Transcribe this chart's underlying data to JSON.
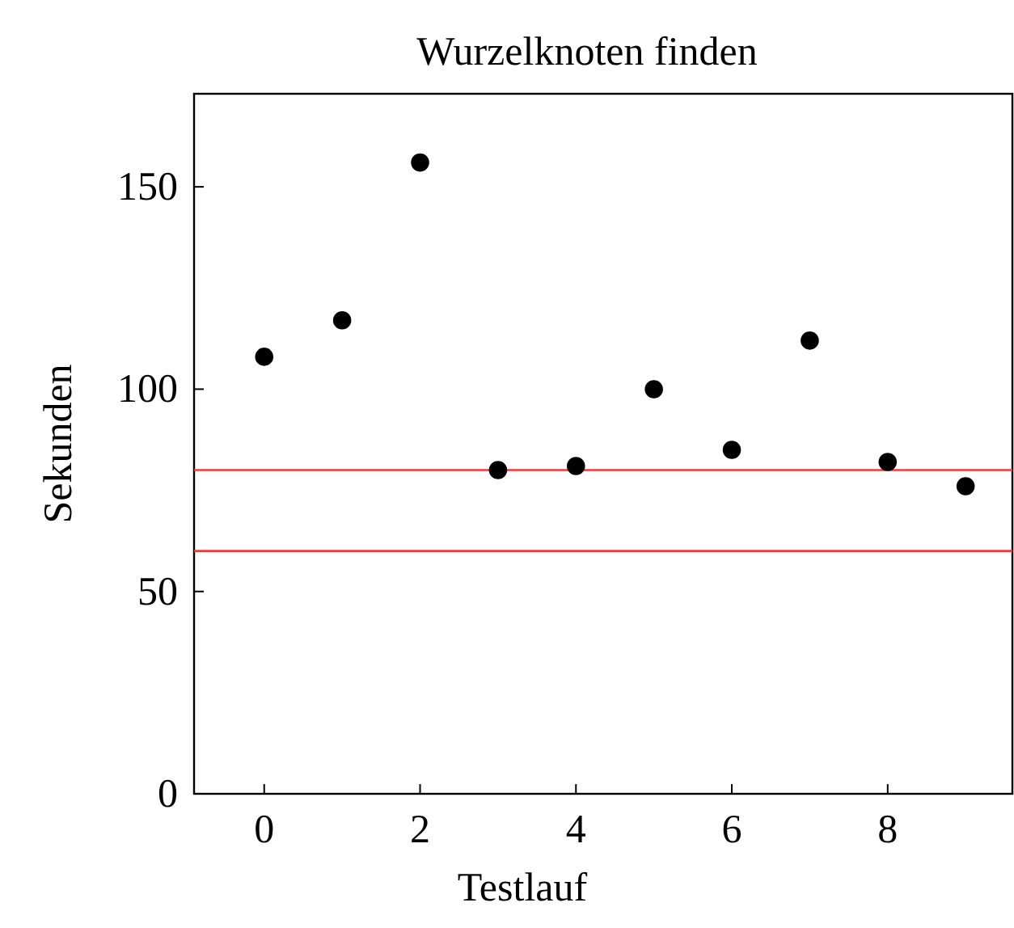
{
  "chart_data": {
    "type": "scatter",
    "title": "Wurzelknoten finden",
    "xlabel": "Testlauf",
    "ylabel": "Sekunden",
    "x": [
      0,
      1,
      2,
      3,
      4,
      5,
      6,
      7,
      8,
      9
    ],
    "series": [
      {
        "color": "#000000",
        "values": [
          108,
          117,
          156,
          80,
          81,
          100,
          85,
          112,
          82,
          76
        ]
      }
    ],
    "xlim": [
      -0.9,
      9.6
    ],
    "xticks": [
      0,
      2,
      4,
      6,
      8
    ],
    "ylim": [
      0,
      173
    ],
    "yticks": [
      0,
      50,
      100,
      150
    ],
    "marker": "circle",
    "ref_lines": [
      {
        "axis": "y",
        "value": 80,
        "color": "#ff3333"
      },
      {
        "axis": "y",
        "value": 60,
        "color": "#ff3333"
      }
    ]
  }
}
